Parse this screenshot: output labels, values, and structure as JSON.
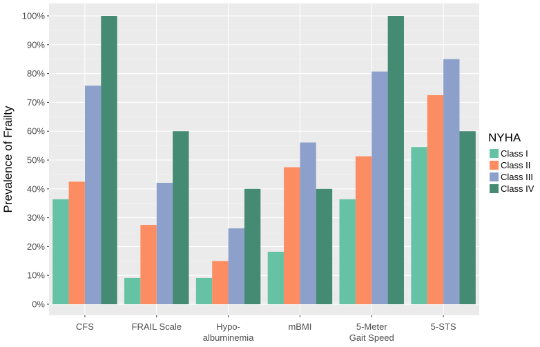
{
  "chart_data": {
    "type": "bar",
    "title": "",
    "xlabel": "",
    "ylabel": "Prevalence of Frailty",
    "ylim": [
      0,
      100
    ],
    "y_ticks": [
      "0%",
      "10%",
      "20%",
      "30%",
      "40%",
      "50%",
      "60%",
      "70%",
      "80%",
      "90%",
      "100%"
    ],
    "categories": [
      [
        "CFS"
      ],
      [
        "FRAIL Scale"
      ],
      [
        "Hypo-",
        "albuminemia"
      ],
      [
        "mBMI"
      ],
      [
        "5-Meter",
        "Gait Speed"
      ],
      [
        "5-STS"
      ]
    ],
    "legend_title": "NYHA",
    "legend_position": "right",
    "grid": true,
    "series": [
      {
        "name": "Class I",
        "color": "#66c2a5",
        "values": [
          36.4,
          9.1,
          9.1,
          18.2,
          36.4,
          54.5
        ]
      },
      {
        "name": "Class II",
        "color": "#fc8d62",
        "values": [
          42.5,
          27.5,
          15.0,
          47.5,
          51.3,
          72.5
        ]
      },
      {
        "name": "Class III",
        "color": "#8da0cb",
        "values": [
          75.8,
          42.1,
          26.3,
          56.1,
          80.7,
          85.0
        ]
      },
      {
        "name": "Class IV",
        "color": "#458b74",
        "values": [
          100,
          60,
          40,
          40,
          100,
          60
        ]
      }
    ]
  }
}
